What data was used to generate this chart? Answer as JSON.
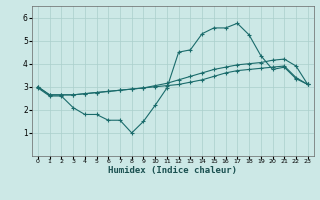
{
  "xlabel": "Humidex (Indice chaleur)",
  "ylabel": "",
  "background_color": "#cce8e6",
  "grid_color": "#aacfcc",
  "line_color": "#1a6b6b",
  "xlim": [
    -0.5,
    23.5
  ],
  "ylim": [
    0,
    6.5
  ],
  "yticks": [
    1,
    2,
    3,
    4,
    5,
    6
  ],
  "xticks": [
    0,
    1,
    2,
    3,
    4,
    5,
    6,
    7,
    8,
    9,
    10,
    11,
    12,
    13,
    14,
    15,
    16,
    17,
    18,
    19,
    20,
    21,
    22,
    23
  ],
  "line1_x": [
    0,
    1,
    2,
    3,
    4,
    5,
    6,
    7,
    8,
    9,
    10,
    11,
    12,
    13,
    14,
    15,
    16,
    17,
    18,
    19,
    20,
    21,
    22,
    23
  ],
  "line1_y": [
    2.95,
    2.6,
    2.6,
    2.1,
    1.8,
    1.8,
    1.55,
    1.55,
    1.0,
    1.5,
    2.2,
    2.95,
    4.5,
    4.6,
    5.3,
    5.55,
    5.55,
    5.75,
    5.25,
    4.35,
    3.75,
    3.85,
    3.35,
    3.1
  ],
  "line2_x": [
    0,
    1,
    2,
    3,
    4,
    5,
    6,
    7,
    8,
    9,
    10,
    11,
    12,
    13,
    14,
    15,
    16,
    17,
    18,
    19,
    20,
    21,
    22,
    23
  ],
  "line2_y": [
    3.0,
    2.65,
    2.65,
    2.65,
    2.7,
    2.75,
    2.8,
    2.85,
    2.9,
    2.95,
    3.0,
    3.05,
    3.1,
    3.2,
    3.3,
    3.45,
    3.6,
    3.7,
    3.75,
    3.8,
    3.85,
    3.9,
    3.4,
    3.1
  ],
  "line3_x": [
    0,
    1,
    2,
    3,
    4,
    5,
    6,
    7,
    8,
    9,
    10,
    11,
    12,
    13,
    14,
    15,
    16,
    17,
    18,
    19,
    20,
    21,
    22,
    23
  ],
  "line3_y": [
    3.0,
    2.65,
    2.65,
    2.65,
    2.7,
    2.75,
    2.8,
    2.85,
    2.9,
    2.95,
    3.05,
    3.15,
    3.3,
    3.45,
    3.6,
    3.75,
    3.85,
    3.95,
    4.0,
    4.05,
    4.15,
    4.2,
    3.9,
    3.1
  ]
}
